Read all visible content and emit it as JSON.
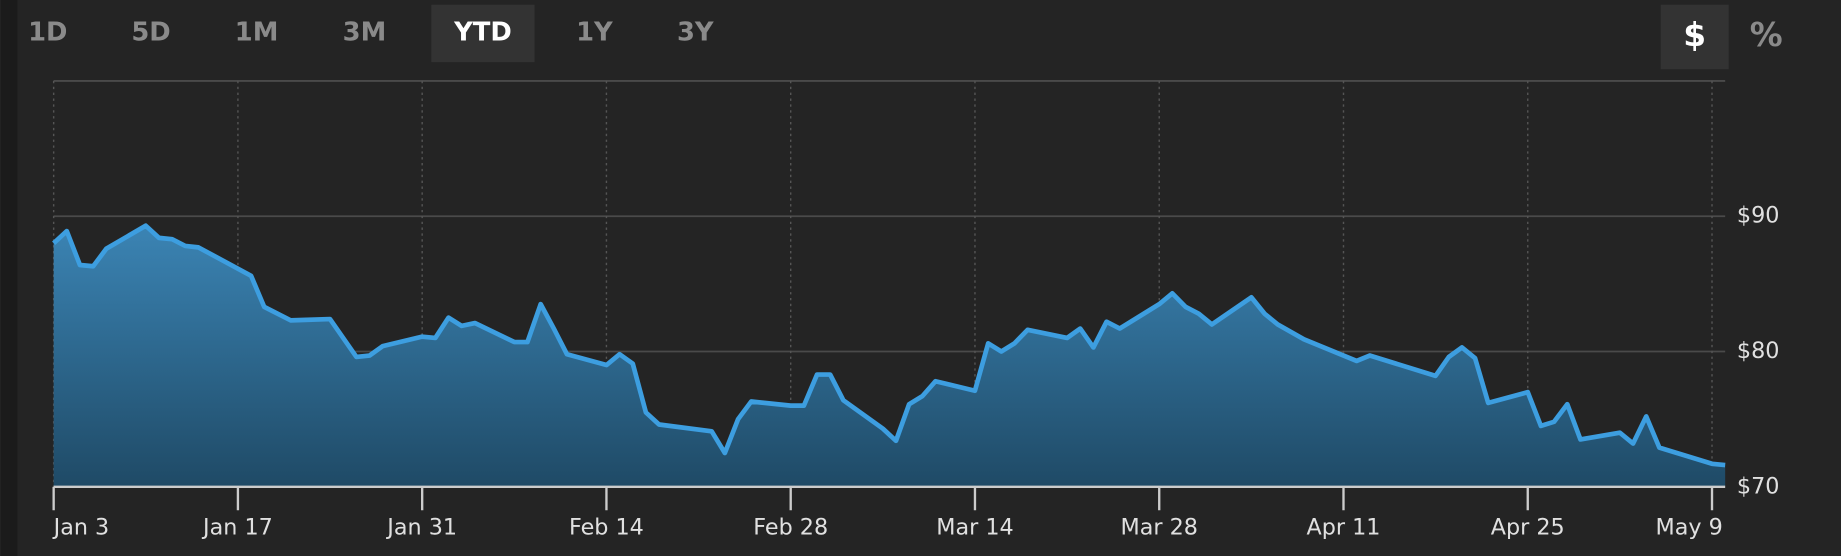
{
  "range_buttons": [
    "1D",
    "5D",
    "1M",
    "3M",
    "YTD",
    "1Y",
    "3Y"
  ],
  "active_range": "YTD",
  "unit_buttons": [
    "$",
    "%"
  ],
  "active_unit": "$",
  "chart_data": {
    "type": "area",
    "x": [
      "Jan 3",
      "Jan 4",
      "Jan 5",
      "Jan 6",
      "Jan 7",
      "Jan 10",
      "Jan 11",
      "Jan 12",
      "Jan 13",
      "Jan 14",
      "Jan 18",
      "Jan 19",
      "Jan 21",
      "Jan 24",
      "Jan 26",
      "Jan 27",
      "Jan 28",
      "Jan 31",
      "Feb 1",
      "Feb 2",
      "Feb 3",
      "Feb 4",
      "Feb 7",
      "Feb 8",
      "Feb 9",
      "Feb 10",
      "Feb 11",
      "Feb 14",
      "Feb 15",
      "Feb 16",
      "Feb 17",
      "Feb 18",
      "Feb 22",
      "Feb 23",
      "Feb 24",
      "Feb 25",
      "Feb 28",
      "Mar 1",
      "Mar 2",
      "Mar 3",
      "Mar 4",
      "Mar 7",
      "Mar 8",
      "Mar 9",
      "Mar 10",
      "Mar 11",
      "Mar 14",
      "Mar 15",
      "Mar 16",
      "Mar 17",
      "Mar 18",
      "Mar 21",
      "Mar 22",
      "Mar 23",
      "Mar 24",
      "Mar 25",
      "Mar 28",
      "Mar 29",
      "Mar 30",
      "Mar 31",
      "Apr 1",
      "Apr 4",
      "Apr 5",
      "Apr 6",
      "Apr 8",
      "Apr 12",
      "Apr 13",
      "Apr 18",
      "Apr 19",
      "Apr 20",
      "Apr 21",
      "Apr 22",
      "Apr 25",
      "Apr 26",
      "Apr 27",
      "Apr 28",
      "Apr 29",
      "May 2",
      "May 3",
      "May 4",
      "May 5",
      "May 9",
      "May 10"
    ],
    "values": [
      88.0,
      88.9,
      86.4,
      86.3,
      87.6,
      89.3,
      88.4,
      88.3,
      87.8,
      87.7,
      85.6,
      83.3,
      82.3,
      82.4,
      79.6,
      79.7,
      80.4,
      81.1,
      81.0,
      82.5,
      81.9,
      82.1,
      80.7,
      80.7,
      83.5,
      81.7,
      79.8,
      79.0,
      79.8,
      79.1,
      75.5,
      74.6,
      74.1,
      72.5,
      75.0,
      76.3,
      76.0,
      76.0,
      78.3,
      78.3,
      76.4,
      74.3,
      73.4,
      76.1,
      76.7,
      77.8,
      77.1,
      80.6,
      80.0,
      80.6,
      81.6,
      81.0,
      81.7,
      80.3,
      82.2,
      81.7,
      83.5,
      84.3,
      83.3,
      82.8,
      82.0,
      84.0,
      82.8,
      82.0,
      80.9,
      79.3,
      79.7,
      78.2,
      79.6,
      80.3,
      79.5,
      76.2,
      77.0,
      74.5,
      74.8,
      76.1,
      73.5,
      74.0,
      73.2,
      75.2,
      72.9,
      71.7,
      71.6
    ],
    "color": "#3d9ee0",
    "xlim": [
      "Jan 3",
      "May 10"
    ],
    "xticks": [
      "Jan 3",
      "Jan 17",
      "Jan 31",
      "Feb 14",
      "Feb 28",
      "Mar 14",
      "Mar 28",
      "Apr 11",
      "Apr 25",
      "May 9"
    ],
    "ylim": [
      70,
      100
    ],
    "yticks": [
      {
        "value": 70,
        "label": "$70"
      },
      {
        "value": 80,
        "label": "$80"
      },
      {
        "value": 90,
        "label": "$90"
      }
    ],
    "grid": true
  }
}
